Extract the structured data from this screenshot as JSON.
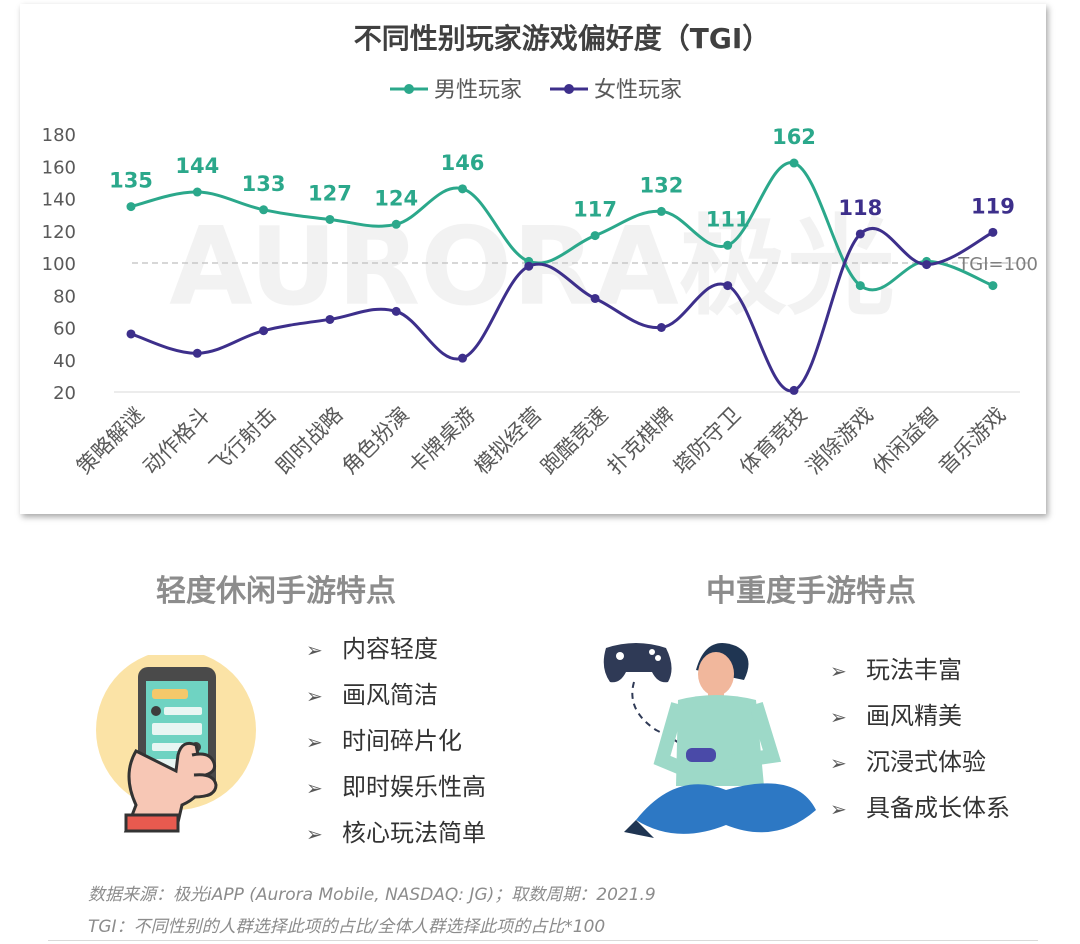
{
  "chart_data": {
    "type": "line",
    "title": "不同性别玩家游戏偏好度（TGI）",
    "categories": [
      "策略解谜",
      "动作格斗",
      "飞行射击",
      "即时战略",
      "角色扮演",
      "卡牌桌游",
      "模拟经营",
      "跑酷竞速",
      "扑克棋牌",
      "塔防守卫",
      "体育竞技",
      "消除游戏",
      "休闲益智",
      "音乐游戏"
    ],
    "series": [
      {
        "name": "男性玩家",
        "color": "#2ba88b",
        "values": [
          135,
          144,
          133,
          127,
          124,
          146,
          101,
          117,
          132,
          111,
          162,
          86,
          101,
          86
        ],
        "labels": [
          "135",
          "144",
          "133",
          "127",
          "124",
          "146",
          "",
          "117",
          "132",
          "111",
          "162",
          "",
          "",
          ""
        ]
      },
      {
        "name": "女性玩家",
        "color": "#3d2f8b",
        "values": [
          56,
          44,
          58,
          65,
          70,
          41,
          98,
          78,
          60,
          86,
          21,
          118,
          99,
          119
        ],
        "labels": [
          "",
          "",
          "",
          "",
          "",
          "",
          "",
          "",
          "",
          "",
          "",
          "118",
          "",
          "119"
        ]
      }
    ],
    "ylim": [
      20,
      180
    ],
    "yticks": [
      "180",
      "160",
      "140",
      "120",
      "100",
      "80",
      "60",
      "40",
      "20"
    ],
    "reference_line": {
      "value": 100,
      "label": "TGI=100"
    },
    "legend_position": "top-center"
  },
  "watermark": "AURORA极光",
  "light_games": {
    "title": "轻度休闲手游特点",
    "items": [
      "内容轻度",
      "画风简洁",
      "时间碎片化",
      "即时娱乐性高",
      "核心玩法简单"
    ]
  },
  "heavy_games": {
    "title": "中重度手游特点",
    "items": [
      "玩法丰富",
      "画风精美",
      "沉浸式体验",
      "具备成长体系"
    ]
  },
  "bullet_glyph": "➢",
  "footnotes": {
    "source": "数据来源：极光iAPP (Aurora Mobile, NASDAQ: JG)；取数周期：2021.9",
    "definition": "TGI：不同性别的人群选择此项的占比/全体人群选择此项的占比*100"
  }
}
